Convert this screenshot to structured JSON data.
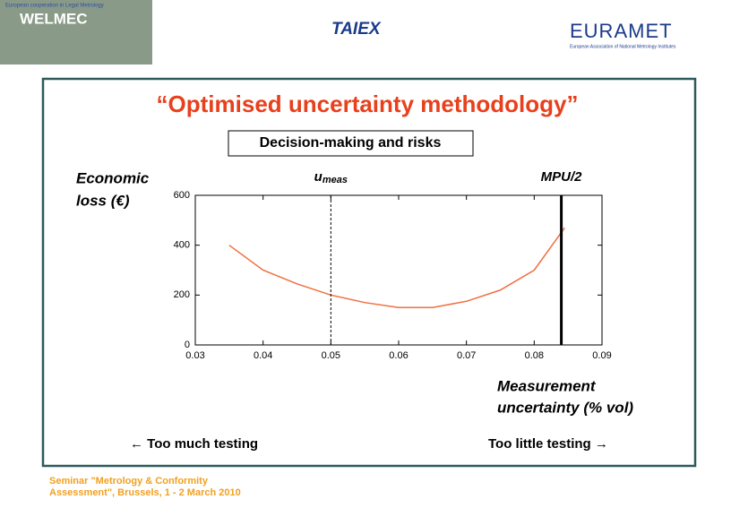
{
  "header": {
    "welmec_tagline": "European cooperation in Legal Metrology",
    "welmec": "WELMEC",
    "taiex": "TAIEX",
    "euramet": "EURAMET",
    "euramet_tagline": "European Association of National Metrology Institutes"
  },
  "slide_title": "“Optimised uncertainty methodology”",
  "subtitle": "Decision-making and risks",
  "chart_data": {
    "type": "line",
    "y_label": [
      "Economic",
      "loss (€)"
    ],
    "x_label": [
      "Measurement",
      "uncertainty (% vol)"
    ],
    "x": [
      0.035,
      0.04,
      0.045,
      0.05,
      0.055,
      0.06,
      0.065,
      0.07,
      0.075,
      0.08,
      0.0845
    ],
    "values": [
      400,
      300,
      245,
      200,
      170,
      150,
      150,
      175,
      220,
      300,
      470
    ],
    "color": "#f07040",
    "xlim": [
      0.03,
      0.09
    ],
    "xticks": [
      0.03,
      0.04,
      0.05,
      0.06,
      0.07,
      0.08,
      0.09
    ],
    "ylim": [
      0,
      600
    ],
    "yticks": [
      0,
      200,
      400,
      600
    ],
    "annotations": [
      {
        "label": {
          "text": "u",
          "sub": "meas"
        },
        "x": 0.05,
        "style": "dashed"
      },
      {
        "label": {
          "text": "MPU/2"
        },
        "x": 0.084,
        "style": "solid"
      }
    ]
  },
  "left_note": "← Too much testing",
  "right_note": "Too little testing →",
  "footer": [
    "Seminar \"Metrology & Conformity",
    "Assessment\", Brussels, 1 - 2 March 2010"
  ]
}
